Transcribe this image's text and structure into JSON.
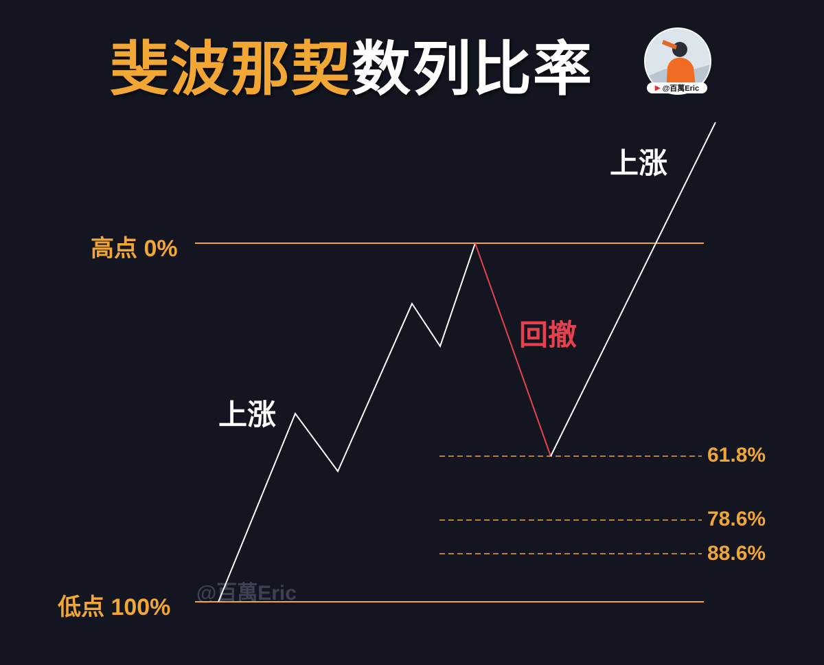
{
  "title": {
    "part1": "斐波那契",
    "part2": "数列比率"
  },
  "avatar": {
    "handle": "@百萬Eric"
  },
  "watermark": "@百萬Eric",
  "levels": {
    "high": "高点  0%",
    "low": "低点  100%",
    "fib": [
      "61.8%",
      "78.6%",
      "88.6%"
    ]
  },
  "annotations": {
    "rise_left": "上涨",
    "retrace": "回撤",
    "rise_right": "上涨"
  },
  "colors": {
    "gold": "#f2a634",
    "white": "#ffffff",
    "red": "#e8414d",
    "background": "#131620"
  }
}
